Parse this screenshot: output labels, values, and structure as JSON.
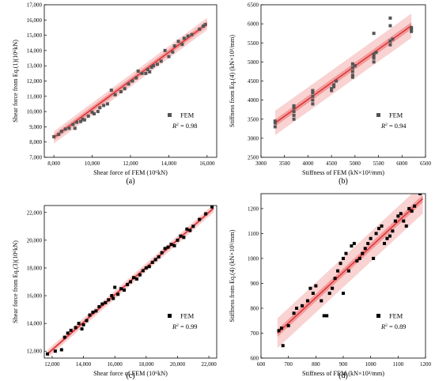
{
  "chart_data": [
    {
      "type": "scatter",
      "subplot_label": "(a)",
      "xlabel": "Shear force of FEM (10⁶kN)",
      "ylabel": "Shear force from Eq.(1)(10⁶kN)",
      "xlim": [
        7500,
        16500
      ],
      "ylim": [
        7000,
        17000
      ],
      "xticks": [
        "8,000",
        "10,000",
        "12,000",
        "14,000",
        "16,000"
      ],
      "yticks": [
        "7,000",
        "8,000",
        "9,000",
        "10,000",
        "11,000",
        "12,000",
        "13,000",
        "14,000",
        "15,000",
        "16,000",
        "17,000"
      ],
      "legend": {
        "label": "FEM",
        "r2_label": "R",
        "r2_value": "= 0.98",
        "position": "right"
      },
      "fit_line": [
        [
          8000,
          8300
        ],
        [
          16000,
          15750
        ]
      ],
      "band": {
        "inner": 180,
        "outer": 400
      },
      "marker_color": "#555555",
      "points": [
        [
          8000,
          8350
        ],
        [
          8250,
          8500
        ],
        [
          8400,
          8700
        ],
        [
          8600,
          8850
        ],
        [
          8800,
          8900
        ],
        [
          9000,
          9150
        ],
        [
          9100,
          8900
        ],
        [
          9200,
          9300
        ],
        [
          9400,
          9350
        ],
        [
          9500,
          9500
        ],
        [
          9600,
          9450
        ],
        [
          9800,
          9700
        ],
        [
          10000,
          9950
        ],
        [
          10100,
          9850
        ],
        [
          10300,
          10000
        ],
        [
          10400,
          10250
        ],
        [
          10600,
          10400
        ],
        [
          10800,
          10500
        ],
        [
          11000,
          11400
        ],
        [
          11200,
          11100
        ],
        [
          11500,
          11300
        ],
        [
          11700,
          11500
        ],
        [
          11900,
          11800
        ],
        [
          12100,
          12000
        ],
        [
          12300,
          12200
        ],
        [
          12400,
          12650
        ],
        [
          12600,
          12500
        ],
        [
          12800,
          12500
        ],
        [
          12900,
          12750
        ],
        [
          13000,
          12600
        ],
        [
          13100,
          12900
        ],
        [
          13200,
          13000
        ],
        [
          13400,
          13100
        ],
        [
          13600,
          13300
        ],
        [
          13800,
          14000
        ],
        [
          14000,
          13600
        ],
        [
          14200,
          13900
        ],
        [
          14300,
          14300
        ],
        [
          14500,
          14600
        ],
        [
          14700,
          14400
        ],
        [
          14800,
          14800
        ],
        [
          15000,
          14950
        ],
        [
          15200,
          15050
        ],
        [
          15600,
          15400
        ],
        [
          15800,
          15600
        ],
        [
          15900,
          15700
        ]
      ]
    },
    {
      "type": "scatter",
      "subplot_label": "(b)",
      "xlabel": "Stiffness of FEM (kN×10³/mm)",
      "ylabel": "Stiffness from Eq.(4) (kN×10³/mm)",
      "xlim": [
        3000,
        6500
      ],
      "ylim": [
        2500,
        6500
      ],
      "xticks": [
        "3000",
        "3500",
        "4000",
        "4500",
        "5000",
        "5500",
        "6000",
        "6500"
      ],
      "yticks": [
        "2500",
        "3000",
        "3500",
        "4000",
        "4500",
        "5000",
        "5500",
        "6000",
        "6500"
      ],
      "legend": {
        "label": "FEM",
        "r2_label": "R",
        "r2_value": "= 0.94",
        "position": "right"
      },
      "fit_line": [
        [
          3300,
          3400
        ],
        [
          6200,
          5950
        ]
      ],
      "band": {
        "inner": 90,
        "outer": 320
      },
      "marker_color": "#555555",
      "points": [
        [
          3300,
          3300
        ],
        [
          3300,
          3400
        ],
        [
          3300,
          3450
        ],
        [
          3700,
          3500
        ],
        [
          3700,
          3600
        ],
        [
          3700,
          3700
        ],
        [
          3700,
          3800
        ],
        [
          3700,
          3850
        ],
        [
          4100,
          3900
        ],
        [
          4100,
          4000
        ],
        [
          4100,
          4100
        ],
        [
          4100,
          4200
        ],
        [
          4100,
          4250
        ],
        [
          4500,
          4250
        ],
        [
          4500,
          4300
        ],
        [
          4550,
          4350
        ],
        [
          4550,
          4400
        ],
        [
          4600,
          4500
        ],
        [
          4950,
          4600
        ],
        [
          4950,
          4650
        ],
        [
          4950,
          4750
        ],
        [
          4950,
          4850
        ],
        [
          5000,
          4900
        ],
        [
          4950,
          4950
        ],
        [
          5400,
          5000
        ],
        [
          5400,
          5100
        ],
        [
          5400,
          5150
        ],
        [
          5400,
          5200
        ],
        [
          5450,
          5250
        ],
        [
          5400,
          5750
        ],
        [
          5750,
          5450
        ],
        [
          5750,
          5550
        ],
        [
          5800,
          5600
        ],
        [
          5750,
          5950
        ],
        [
          5750,
          6150
        ],
        [
          6200,
          5800
        ],
        [
          6200,
          5850
        ],
        [
          6200,
          5900
        ]
      ]
    },
    {
      "type": "scatter",
      "subplot_label": "(c)",
      "xlabel": "Shear force of FEM (10⁶kN)",
      "ylabel": "Shear force from Eq.(3)(10⁶kN)",
      "xlim": [
        11500,
        22500
      ],
      "ylim": [
        11500,
        22500
      ],
      "xticks": [
        "12,000",
        "14,000",
        "16,000",
        "18,000",
        "20,000",
        "22,000"
      ],
      "yticks": [
        "12,000",
        "14,000",
        "16,000",
        "18,000",
        "20,000",
        "22,000"
      ],
      "legend": {
        "label": "FEM",
        "r2_label": "R",
        "r2_value": "= 0.99",
        "position": "right"
      },
      "fit_line": [
        [
          11700,
          11800
        ],
        [
          22300,
          22300
        ]
      ],
      "band": {
        "inner": 120,
        "outer": 300
      },
      "marker_color": "#000000",
      "points": [
        [
          11700,
          11800
        ],
        [
          12200,
          12000
        ],
        [
          12600,
          12100
        ],
        [
          12800,
          13000
        ],
        [
          13000,
          13300
        ],
        [
          13200,
          13500
        ],
        [
          13500,
          13700
        ],
        [
          13700,
          14000
        ],
        [
          13900,
          13600
        ],
        [
          14000,
          13900
        ],
        [
          14200,
          14200
        ],
        [
          14400,
          14600
        ],
        [
          14600,
          14800
        ],
        [
          14800,
          14900
        ],
        [
          15000,
          15200
        ],
        [
          15200,
          15400
        ],
        [
          15400,
          15500
        ],
        [
          15600,
          15700
        ],
        [
          15800,
          16000
        ],
        [
          15900,
          15800
        ],
        [
          16000,
          16600
        ],
        [
          16200,
          16100
        ],
        [
          16400,
          16500
        ],
        [
          16600,
          16400
        ],
        [
          16800,
          16800
        ],
        [
          17000,
          17000
        ],
        [
          17200,
          17300
        ],
        [
          17400,
          17200
        ],
        [
          17600,
          17500
        ],
        [
          17800,
          17800
        ],
        [
          18000,
          18000
        ],
        [
          18200,
          18100
        ],
        [
          18400,
          18400
        ],
        [
          18600,
          18600
        ],
        [
          18800,
          18800
        ],
        [
          19000,
          19100
        ],
        [
          19200,
          19400
        ],
        [
          19400,
          19500
        ],
        [
          19600,
          19700
        ],
        [
          19800,
          19600
        ],
        [
          20000,
          20000
        ],
        [
          20200,
          20300
        ],
        [
          20400,
          20200
        ],
        [
          20600,
          20800
        ],
        [
          20800,
          20700
        ],
        [
          21000,
          21000
        ],
        [
          21400,
          21500
        ],
        [
          21800,
          21900
        ],
        [
          22200,
          22400
        ]
      ]
    },
    {
      "type": "scatter",
      "subplot_label": "(d)",
      "xlabel": "Stiffness of FEM (kN×10³/mm)",
      "ylabel": "Stiffness from Eq.(4) (kN×10³/mm)",
      "xlim": [
        600,
        1200
      ],
      "ylim": [
        600,
        1260
      ],
      "xticks": [
        "600",
        "700",
        "800",
        "900",
        "1000",
        "1100",
        "1200"
      ],
      "yticks": [
        "600",
        "700",
        "800",
        "900",
        "1000",
        "1100",
        "1200"
      ],
      "legend": {
        "label": "FEM",
        "r2_label": "R",
        "r2_value": "= 0.89",
        "position": "right"
      },
      "fit_line": [
        [
          660,
          700
        ],
        [
          1190,
          1240
        ]
      ],
      "band": {
        "inner": 15,
        "outer": 60
      },
      "marker_color": "#000000",
      "points": [
        [
          665,
          710
        ],
        [
          675,
          720
        ],
        [
          680,
          650
        ],
        [
          700,
          730
        ],
        [
          720,
          780
        ],
        [
          730,
          800
        ],
        [
          750,
          810
        ],
        [
          770,
          830
        ],
        [
          780,
          880
        ],
        [
          790,
          860
        ],
        [
          800,
          890
        ],
        [
          820,
          830
        ],
        [
          830,
          770
        ],
        [
          840,
          770
        ],
        [
          850,
          860
        ],
        [
          860,
          880
        ],
        [
          870,
          920
        ],
        [
          880,
          950
        ],
        [
          890,
          980
        ],
        [
          900,
          1000
        ],
        [
          900,
          860
        ],
        [
          910,
          1020
        ],
        [
          920,
          950
        ],
        [
          930,
          1050
        ],
        [
          940,
          1060
        ],
        [
          950,
          990
        ],
        [
          960,
          1000
        ],
        [
          970,
          1020
        ],
        [
          980,
          1040
        ],
        [
          990,
          1060
        ],
        [
          1000,
          1080
        ],
        [
          1010,
          1000
        ],
        [
          1020,
          1100
        ],
        [
          1030,
          1120
        ],
        [
          1040,
          1130
        ],
        [
          1050,
          1060
        ],
        [
          1060,
          1080
        ],
        [
          1070,
          1090
        ],
        [
          1080,
          1110
        ],
        [
          1090,
          1150
        ],
        [
          1100,
          1170
        ],
        [
          1110,
          1180
        ],
        [
          1120,
          1150
        ],
        [
          1130,
          1130
        ],
        [
          1140,
          1200
        ],
        [
          1150,
          1190
        ],
        [
          1160,
          1210
        ],
        [
          1180,
          1260
        ]
      ]
    }
  ]
}
